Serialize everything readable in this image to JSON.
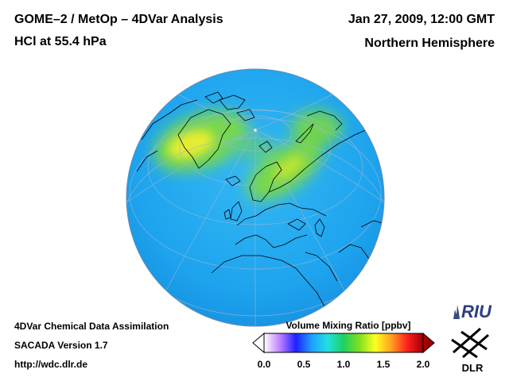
{
  "header": {
    "title": "GOME–2 / MetOp – 4DVar Analysis",
    "subtitle": "HCl at 55.4 hPa",
    "date": "Jan 27, 2009, 12:00 GMT",
    "region": "Northern Hemisphere"
  },
  "footer": {
    "line1": "4DVar Chemical Data Assimilation",
    "line2": "SACADA Version 1.7",
    "url": "http://wdc.dlr.de"
  },
  "colorbar": {
    "title": "Volume Mixing Ratio [ppbv]",
    "min": 0.0,
    "max": 2.0,
    "ticks": [
      "0.0",
      "0.5",
      "1.0",
      "1.5",
      "2.0"
    ],
    "colors": [
      "#ffffff",
      "#c080ff",
      "#2020ff",
      "#20a0ff",
      "#20e0e0",
      "#20d060",
      "#80e020",
      "#ffff20",
      "#ffa020",
      "#ff2020",
      "#a00000"
    ]
  },
  "logos": {
    "riu": "RIU",
    "dlr": "DLR"
  },
  "colors": {
    "ocean_field": "#1eaaf0",
    "enhanced_field": "#7ddc3c",
    "peak_field": "#e8ee30",
    "coastline": "#000000",
    "grid": "#9ab8d8"
  }
}
